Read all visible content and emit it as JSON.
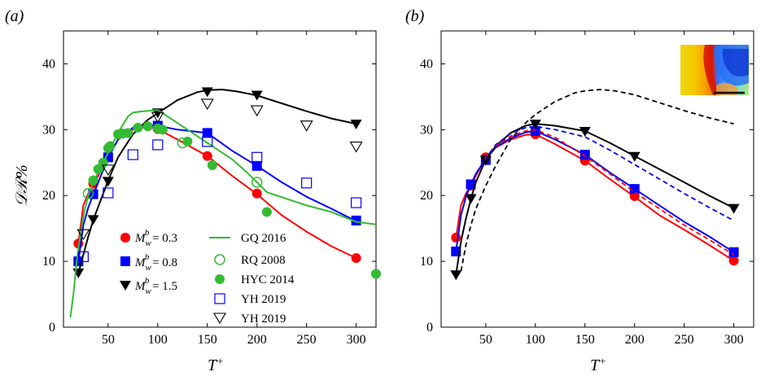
{
  "chart_data": [
    {
      "panel_label": "(a)",
      "type": "line",
      "xlabel": "T+",
      "ylabel": "𝒟ℛ%",
      "xlim": [
        5,
        320
      ],
      "ylim": [
        0,
        45
      ],
      "xticks": [
        50,
        100,
        150,
        200,
        250,
        300
      ],
      "yticks": [
        0,
        10,
        20,
        30,
        40
      ],
      "legend_position": "lower-center",
      "series": [
        {
          "name": "M_w^b = 0.3",
          "color": "#ff0000",
          "style": "line+marker",
          "marker": "circle-filled",
          "x": [
            20,
            25,
            30,
            35,
            40,
            50,
            60,
            75,
            90,
            100,
            120,
            150,
            175,
            200,
            225,
            250,
            275,
            300
          ],
          "y": [
            12.7,
            18.5,
            20.3,
            21.6,
            23,
            25.8,
            28.5,
            30,
            30.5,
            30.1,
            28.5,
            26,
            23,
            20.2,
            17,
            14.5,
            12.3,
            10.5
          ],
          "marker_x": [
            20,
            35,
            50,
            100,
            150,
            200,
            300
          ],
          "marker_y": [
            12.7,
            21.8,
            25.8,
            30.1,
            26,
            20.3,
            10.5
          ]
        },
        {
          "name": "M_w^b = 0.8",
          "color": "#0000ff",
          "style": "line+marker",
          "marker": "square-filled",
          "x": [
            20,
            25,
            30,
            35,
            40,
            50,
            60,
            75,
            90,
            100,
            120,
            150,
            175,
            200,
            225,
            250,
            275,
            300
          ],
          "y": [
            10,
            15.5,
            18.2,
            20.1,
            22,
            25.7,
            28.5,
            30.3,
            30.7,
            30.6,
            30,
            29.5,
            26.8,
            24.5,
            22,
            19.8,
            18,
            16.1
          ],
          "marker_x": [
            20,
            35,
            50,
            100,
            150,
            200,
            300
          ],
          "marker_y": [
            10,
            20.2,
            25.8,
            30.6,
            29.5,
            24.5,
            16.2
          ]
        },
        {
          "name": "M_w^b = 1.5",
          "color": "#000000",
          "style": "line+marker",
          "marker": "triangle-down-filled",
          "x": [
            20,
            25,
            30,
            35,
            40,
            50,
            60,
            75,
            90,
            100,
            120,
            140,
            150,
            165,
            180,
            200,
            225,
            250,
            275,
            300
          ],
          "y": [
            8.2,
            11,
            13.8,
            16.3,
            18.3,
            22.3,
            25.8,
            29.3,
            31.5,
            32.5,
            34.5,
            35.7,
            36,
            36.1,
            35.8,
            35.2,
            34,
            32.8,
            31.7,
            30.9
          ],
          "marker_x": [
            20,
            35,
            50,
            100,
            150,
            200,
            300
          ],
          "marker_y": [
            8.3,
            16.4,
            22.2,
            32.6,
            35.8,
            35.3,
            30.9
          ]
        },
        {
          "name": "GQ 2016",
          "color": "#33bb33",
          "style": "line",
          "x": [
            12,
            15,
            18,
            20,
            23,
            26,
            30,
            35,
            40,
            50,
            60,
            70,
            75,
            85,
            100,
            110,
            125,
            140,
            150,
            160,
            175,
            190,
            200,
            210,
            230,
            250,
            275,
            300,
            320
          ],
          "y": [
            1.5,
            5,
            9.5,
            12,
            15,
            17.5,
            20,
            22,
            23.5,
            26.5,
            29.5,
            32,
            32.6,
            32.8,
            33,
            32,
            30.5,
            29,
            28,
            27,
            25.5,
            23.5,
            22,
            20.5,
            19.5,
            18.5,
            17.5,
            16,
            15.6
          ]
        },
        {
          "name": "RQ 2008",
          "color": "#33bb33",
          "style": "marker",
          "marker": "circle-open",
          "x": [
            30,
            125,
            200
          ],
          "y": [
            20.3,
            28,
            22
          ]
        },
        {
          "name": "HYC 2014",
          "color": "#33bb33",
          "style": "marker",
          "marker": "circle-filled",
          "x": [
            35,
            40,
            45,
            50,
            52,
            60,
            65,
            70,
            80,
            90,
            100,
            105,
            130,
            155,
            210,
            320
          ],
          "y": [
            22.3,
            24,
            25,
            27.2,
            27.5,
            29.3,
            29.4,
            29.5,
            30.3,
            30.5,
            30.2,
            30,
            28.2,
            24.6,
            17.5,
            8.1
          ]
        },
        {
          "name": "YH 2019",
          "color": "#0000ff",
          "style": "marker",
          "marker": "square-open",
          "x": [
            25,
            50,
            75,
            100,
            150,
            200,
            250,
            300
          ],
          "y": [
            10.7,
            20.4,
            26.2,
            27.7,
            28.2,
            25.8,
            21.9,
            18.9
          ]
        },
        {
          "name": "YH 2019",
          "color": "#000000",
          "style": "marker",
          "marker": "triangle-down-open",
          "x": [
            25,
            50,
            100,
            150,
            200,
            250,
            300
          ],
          "y": [
            14.2,
            24,
            32,
            34,
            33,
            30.7,
            27.5
          ]
        }
      ]
    },
    {
      "panel_label": "(b)",
      "type": "line",
      "xlabel": "T+",
      "ylabel": "",
      "xlim": [
        5,
        320
      ],
      "ylim": [
        0,
        45
      ],
      "xticks": [
        50,
        100,
        150,
        200,
        250,
        300
      ],
      "yticks": [
        0,
        10,
        20,
        30,
        40
      ],
      "inset": "contour-thumbnail",
      "series": [
        {
          "color": "#ff0000",
          "style": "line+marker",
          "marker": "circle-filled",
          "x": [
            20,
            25,
            30,
            35,
            40,
            50,
            60,
            75,
            90,
            100,
            120,
            150,
            175,
            200,
            225,
            250,
            275,
            300
          ],
          "y": [
            13.6,
            18.5,
            20.3,
            21.5,
            23,
            25.8,
            27.3,
            28.5,
            29.2,
            29.3,
            27.8,
            25.3,
            22.5,
            19.8,
            17,
            14.8,
            12.5,
            10.1
          ],
          "marker_x": [
            20,
            35,
            50,
            100,
            150,
            200,
            300
          ],
          "marker_y": [
            13.6,
            21.5,
            25.8,
            29.3,
            25.3,
            19.9,
            10.1
          ]
        },
        {
          "color": "#0000ff",
          "style": "line+marker",
          "marker": "square-filled",
          "x": [
            20,
            25,
            30,
            35,
            40,
            50,
            60,
            75,
            90,
            100,
            120,
            150,
            175,
            200,
            225,
            250,
            275,
            300
          ],
          "y": [
            11.5,
            17,
            19.8,
            21.7,
            23.3,
            25.5,
            27.3,
            28.7,
            29.6,
            29.8,
            28.5,
            26.2,
            23.5,
            21,
            18.5,
            16,
            13.8,
            11.4
          ],
          "marker_x": [
            20,
            35,
            50,
            100,
            150,
            200,
            300
          ],
          "marker_y": [
            11.5,
            21.7,
            25.4,
            29.8,
            26.2,
            21,
            11.4
          ]
        },
        {
          "color": "#000000",
          "style": "line+marker",
          "marker": "triangle-down-filled",
          "x": [
            20,
            25,
            30,
            35,
            40,
            50,
            60,
            75,
            90,
            100,
            120,
            150,
            175,
            200,
            225,
            250,
            275,
            300
          ],
          "y": [
            8,
            13,
            16.5,
            19.5,
            22,
            25.5,
            27.5,
            29.5,
            30.6,
            30.9,
            30.6,
            29.8,
            28,
            26,
            24,
            22,
            20,
            18.1
          ],
          "marker_x": [
            20,
            35,
            50,
            100,
            150,
            200,
            300
          ],
          "marker_y": [
            8,
            19.6,
            25.4,
            30.9,
            29.8,
            26,
            18.1
          ]
        },
        {
          "color": "#ff0000",
          "style": "dashed",
          "x": [
            30,
            40,
            50,
            60,
            75,
            90,
            100,
            120,
            150,
            175,
            200,
            225,
            250,
            275,
            300
          ],
          "y": [
            20,
            23.2,
            25.8,
            27.5,
            29,
            29.8,
            30,
            28.8,
            26,
            23.3,
            20.5,
            18,
            15.5,
            13.3,
            11
          ]
        },
        {
          "color": "#0000ff",
          "style": "dashed",
          "x": [
            30,
            40,
            50,
            60,
            75,
            90,
            100,
            120,
            150,
            175,
            200,
            225,
            250,
            275,
            300
          ],
          "y": [
            20,
            23.3,
            25.6,
            27.7,
            29.4,
            30.3,
            30.5,
            30,
            28.9,
            26.9,
            24.7,
            22.5,
            20.3,
            18.2,
            16.2
          ]
        },
        {
          "color": "#000000",
          "style": "dashed",
          "x": [
            25,
            30,
            35,
            40,
            50,
            60,
            75,
            90,
            100,
            120,
            140,
            150,
            165,
            180,
            200,
            225,
            250,
            275,
            300
          ],
          "y": [
            8.5,
            12.5,
            15.5,
            18,
            21.5,
            24.5,
            28.5,
            31,
            32.3,
            34.3,
            35.6,
            35.9,
            36.1,
            35.9,
            35.3,
            34.1,
            32.9,
            31.8,
            30.9
          ]
        }
      ]
    }
  ]
}
